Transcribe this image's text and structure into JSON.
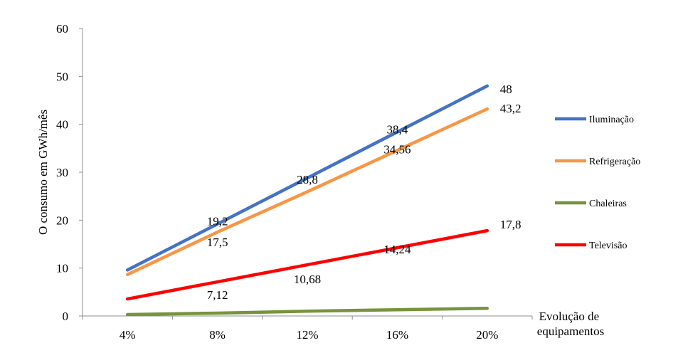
{
  "chart_data": {
    "type": "line",
    "title": "",
    "ylabel": "O consumo em GWh/mês",
    "xlabel_lines": [
      "Evolução de",
      "equipamentos"
    ],
    "categories": [
      "4%",
      "8%",
      "12%",
      "16%",
      "20%"
    ],
    "ylim": [
      0,
      60
    ],
    "yticks": [
      "0",
      "10",
      "20",
      "30",
      "40",
      "50",
      "60"
    ],
    "legend_position": "right",
    "series": [
      {
        "name": "Iluminação",
        "color": "#4472C4",
        "values": [
          9.6,
          19.2,
          28.8,
          38.4,
          48
        ],
        "labels": [
          "",
          "19,2",
          "28,8",
          "38,4",
          "48"
        ]
      },
      {
        "name": "Refrigeração",
        "color": "#F79646",
        "values": [
          8.64,
          17.5,
          25.92,
          34.56,
          43.2
        ],
        "labels": [
          "",
          "17,5",
          "",
          "34,56",
          "43,2"
        ]
      },
      {
        "name": "Chaleiras",
        "color": "#77933C",
        "values": [
          0.3,
          0.6,
          1.0,
          1.3,
          1.6
        ],
        "labels": [
          "",
          "",
          "",
          "",
          ""
        ]
      },
      {
        "name": "Televisão",
        "color": "#FF0000",
        "values": [
          3.56,
          7.12,
          10.68,
          14.24,
          17.8
        ],
        "labels": [
          "",
          "7,12",
          "10,68",
          "14,24",
          "17,8"
        ]
      }
    ]
  }
}
